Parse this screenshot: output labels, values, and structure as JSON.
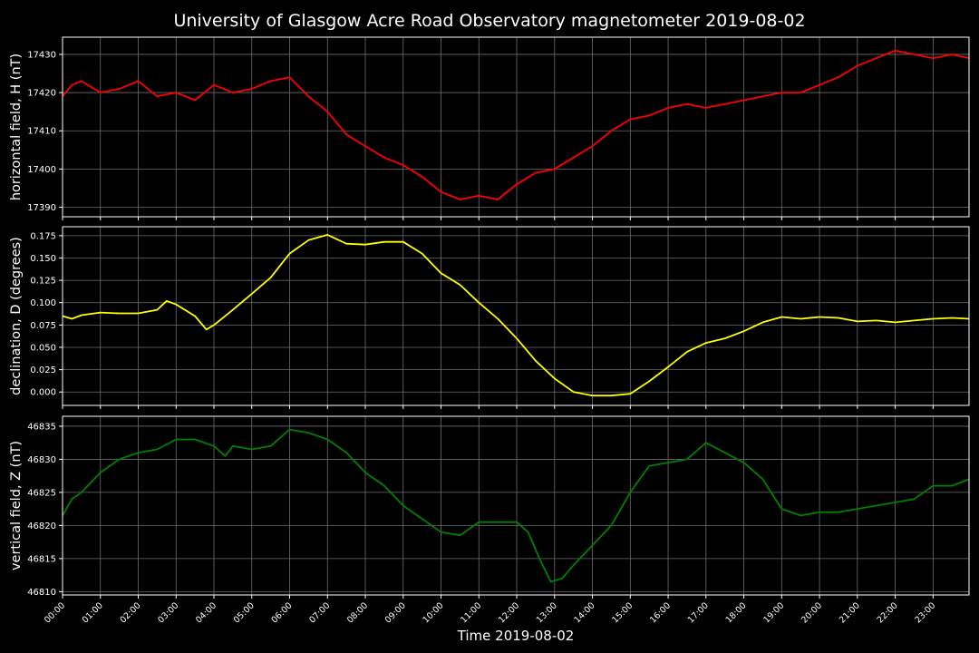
{
  "title": "University of Glasgow Acre Road Observatory magnetometer 2019-08-02",
  "xlabel": "Time 2019-08-02",
  "x_ticks": [
    "00:00",
    "01:00",
    "02:00",
    "03:00",
    "04:00",
    "05:00",
    "06:00",
    "07:00",
    "08:00",
    "09:00",
    "10:00",
    "11:00",
    "12:00",
    "13:00",
    "14:00",
    "15:00",
    "16:00",
    "17:00",
    "18:00",
    "19:00",
    "20:00",
    "21:00",
    "22:00",
    "23:00"
  ],
  "chart_data": [
    {
      "type": "line",
      "ylabel": "horizontal field, H (nT)",
      "color": "#ff0000",
      "ylim": [
        17387.5,
        17434.5
      ],
      "yticks": [
        17390,
        17400,
        17410,
        17420,
        17430
      ],
      "ytick_labels": [
        "17390",
        "17400",
        "17410",
        "17420",
        "17430"
      ],
      "series": [
        {
          "x": [
            0,
            0.25,
            0.5,
            1,
            1.5,
            2,
            2.5,
            3,
            3.5,
            4,
            4.5,
            5,
            5.5,
            6,
            6.5,
            7,
            7.5,
            8,
            8.5,
            9,
            9.5,
            10,
            10.5,
            11,
            11.5,
            12,
            12.5,
            13,
            13.5,
            14,
            14.5,
            15,
            15.5,
            16,
            16.5,
            17,
            17.5,
            18,
            18.5,
            19,
            19.5,
            20,
            20.5,
            21,
            21.5,
            22,
            22.5,
            23,
            23.5,
            23.95
          ],
          "y": [
            17419,
            17422,
            17423,
            17420,
            17421,
            17423,
            17419,
            17420,
            17418,
            17422,
            17420,
            17421,
            17423,
            17424,
            17419,
            17415,
            17409,
            17406,
            17403,
            17401,
            17398,
            17394,
            17392,
            17393,
            17392,
            17396,
            17399,
            17400,
            17403,
            17406,
            17410,
            17413,
            17414,
            17416,
            17417,
            17416,
            17417,
            17418,
            17419,
            17420,
            17420,
            17422,
            17424,
            17427,
            17429,
            17431,
            17430,
            17429,
            17430,
            17429
          ]
        }
      ]
    },
    {
      "type": "line",
      "ylabel": "declination, D (degrees)",
      "color": "#ffff00",
      "ylim": [
        -0.015,
        0.185
      ],
      "yticks": [
        0,
        0.025,
        0.05,
        0.075,
        0.1,
        0.125,
        0.15,
        0.175
      ],
      "ytick_labels": [
        "0.000",
        "0.025",
        "0.050",
        "0.075",
        "0.100",
        "0.125",
        "0.150",
        "0.175"
      ],
      "series": [
        {
          "x": [
            0,
            0.25,
            0.5,
            1,
            1.5,
            2,
            2.5,
            2.75,
            3,
            3.5,
            3.8,
            4,
            4.5,
            5,
            5.5,
            6,
            6.5,
            7,
            7.5,
            8,
            8.5,
            9,
            9.5,
            10,
            10.5,
            11,
            11.5,
            12,
            12.5,
            13,
            13.5,
            14,
            14.5,
            15,
            15.5,
            16,
            16.5,
            17,
            17.5,
            18,
            18.5,
            19,
            19.5,
            20,
            20.5,
            21,
            21.5,
            22,
            22.5,
            23,
            23.5,
            23.95
          ],
          "y": [
            0.085,
            0.082,
            0.086,
            0.089,
            0.088,
            0.088,
            0.092,
            0.102,
            0.098,
            0.085,
            0.07,
            0.075,
            0.092,
            0.11,
            0.128,
            0.155,
            0.17,
            0.176,
            0.166,
            0.165,
            0.168,
            0.168,
            0.155,
            0.133,
            0.12,
            0.1,
            0.082,
            0.06,
            0.035,
            0.015,
            0.0,
            -0.004,
            -0.004,
            -0.002,
            0.012,
            0.028,
            0.045,
            0.055,
            0.06,
            0.068,
            0.078,
            0.084,
            0.082,
            0.084,
            0.083,
            0.079,
            0.08,
            0.078,
            0.08,
            0.082,
            0.083,
            0.082
          ]
        }
      ]
    },
    {
      "type": "line",
      "ylabel": "vertical field, Z (nT)",
      "color": "#008000",
      "ylim": [
        46809.5,
        46836.5
      ],
      "yticks": [
        46810,
        46815,
        46820,
        46825,
        46830,
        46835
      ],
      "ytick_labels": [
        "46810",
        "46815",
        "46820",
        "46825",
        "46830",
        "46835"
      ],
      "series": [
        {
          "x": [
            0,
            0.25,
            0.5,
            1,
            1.5,
            2,
            2.5,
            3,
            3.5,
            4,
            4.3,
            4.5,
            5,
            5.5,
            6,
            6.5,
            7,
            7.5,
            8,
            8.5,
            9,
            9.5,
            10,
            10.5,
            11,
            11.5,
            12,
            12.3,
            12.6,
            12.9,
            13.2,
            13.5,
            14,
            14.5,
            15,
            15.5,
            16,
            16.5,
            17,
            17.5,
            18,
            18.5,
            19,
            19.5,
            20,
            20.5,
            21,
            21.5,
            22,
            22.5,
            23,
            23.5,
            23.95
          ],
          "y": [
            46821.5,
            46824,
            46825,
            46828,
            46830,
            46831,
            46831.5,
            46833,
            46833,
            46832,
            46830.5,
            46832,
            46831.5,
            46832,
            46834.5,
            46834,
            46833,
            46831,
            46828,
            46826,
            46823,
            46821,
            46819,
            46818.5,
            46820.5,
            46820.5,
            46820.5,
            46819,
            46815,
            46811.5,
            46812,
            46814,
            46817,
            46820,
            46825,
            46829,
            46829.5,
            46830,
            46832.5,
            46831,
            46829.5,
            46827,
            46822.5,
            46821.5,
            46822,
            46822,
            46822.5,
            46823,
            46823.5,
            46824,
            46826,
            46826,
            46827
          ]
        }
      ]
    }
  ]
}
